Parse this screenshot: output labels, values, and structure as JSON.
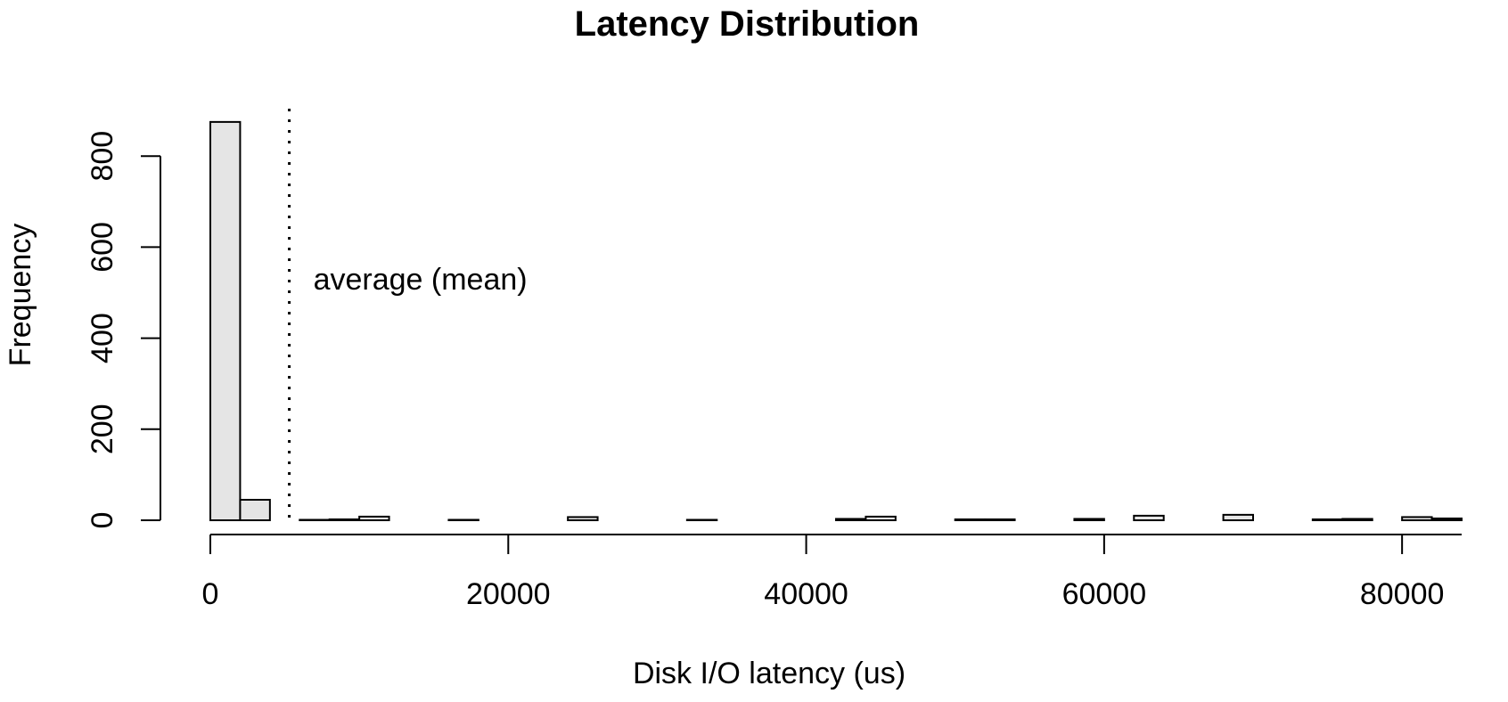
{
  "chart_data": {
    "type": "bar",
    "title": "Latency Distribution",
    "xlabel": "Disk I/O latency (us)",
    "ylabel": "Frequency",
    "bin_width": 2000,
    "xlim": [
      0,
      84000
    ],
    "ylim": [
      0,
      900
    ],
    "xticks": [
      0,
      20000,
      40000,
      60000,
      80000
    ],
    "yticks": [
      0,
      200,
      400,
      600,
      800
    ],
    "bar_fill": "#e5e5e5",
    "bins": [
      {
        "start": 0,
        "end": 2000,
        "count": 875
      },
      {
        "start": 2000,
        "end": 4000,
        "count": 45
      },
      {
        "start": 6000,
        "end": 8000,
        "count": 1
      },
      {
        "start": 8000,
        "end": 10000,
        "count": 2
      },
      {
        "start": 10000,
        "end": 12000,
        "count": 8
      },
      {
        "start": 16000,
        "end": 18000,
        "count": 1
      },
      {
        "start": 24000,
        "end": 26000,
        "count": 7
      },
      {
        "start": 32000,
        "end": 34000,
        "count": 1
      },
      {
        "start": 42000,
        "end": 44000,
        "count": 3
      },
      {
        "start": 44000,
        "end": 46000,
        "count": 8
      },
      {
        "start": 50000,
        "end": 52000,
        "count": 2
      },
      {
        "start": 52000,
        "end": 54000,
        "count": 2
      },
      {
        "start": 58000,
        "end": 60000,
        "count": 3
      },
      {
        "start": 62000,
        "end": 64000,
        "count": 10
      },
      {
        "start": 68000,
        "end": 70000,
        "count": 12
      },
      {
        "start": 74000,
        "end": 76000,
        "count": 2
      },
      {
        "start": 76000,
        "end": 78000,
        "count": 3
      },
      {
        "start": 80000,
        "end": 82000,
        "count": 7
      },
      {
        "start": 82000,
        "end": 84000,
        "count": 4
      }
    ],
    "mean_line": {
      "x": 5300,
      "label": "average (mean)"
    }
  }
}
